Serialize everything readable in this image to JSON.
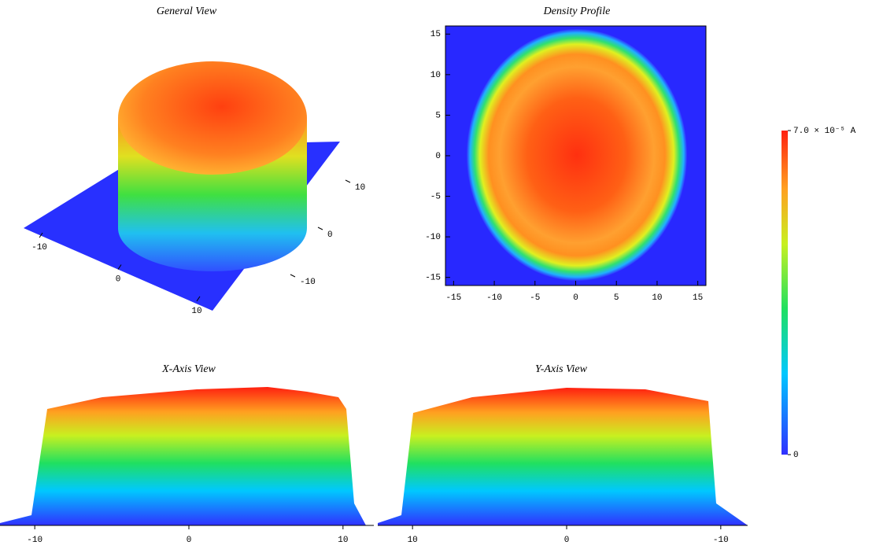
{
  "chart_data": [
    {
      "type": "surface3d",
      "title": "General View",
      "xlim": [
        -13,
        13
      ],
      "xticks": [
        -10,
        0,
        10
      ],
      "ylim": [
        -13,
        13
      ],
      "yticks": [
        10,
        0,
        -10
      ]
    },
    {
      "type": "heatmap",
      "title": "Density Profile",
      "xlim": [
        -16,
        16
      ],
      "xticks": [
        -15,
        -10,
        -5,
        0,
        5,
        10,
        15
      ],
      "ylim": [
        -16,
        16
      ],
      "yticks": [
        15,
        10,
        5,
        0,
        -5,
        -10,
        -15
      ]
    },
    {
      "type": "side-surface",
      "title": "X-Axis View",
      "xlim": [
        -12,
        12
      ],
      "xticks": [
        -10,
        0,
        10
      ]
    },
    {
      "type": "side-surface",
      "title": "Y-Axis View",
      "xlim": [
        12,
        -12
      ],
      "xticks": [
        10,
        0,
        -10
      ]
    },
    {
      "type": "colorbar",
      "ylim": [
        0,
        7e-05
      ],
      "yticks": [
        0,
        {
          "value": 7e-05,
          "label": "7.0 × 10⁻⁵ A"
        }
      ]
    }
  ]
}
